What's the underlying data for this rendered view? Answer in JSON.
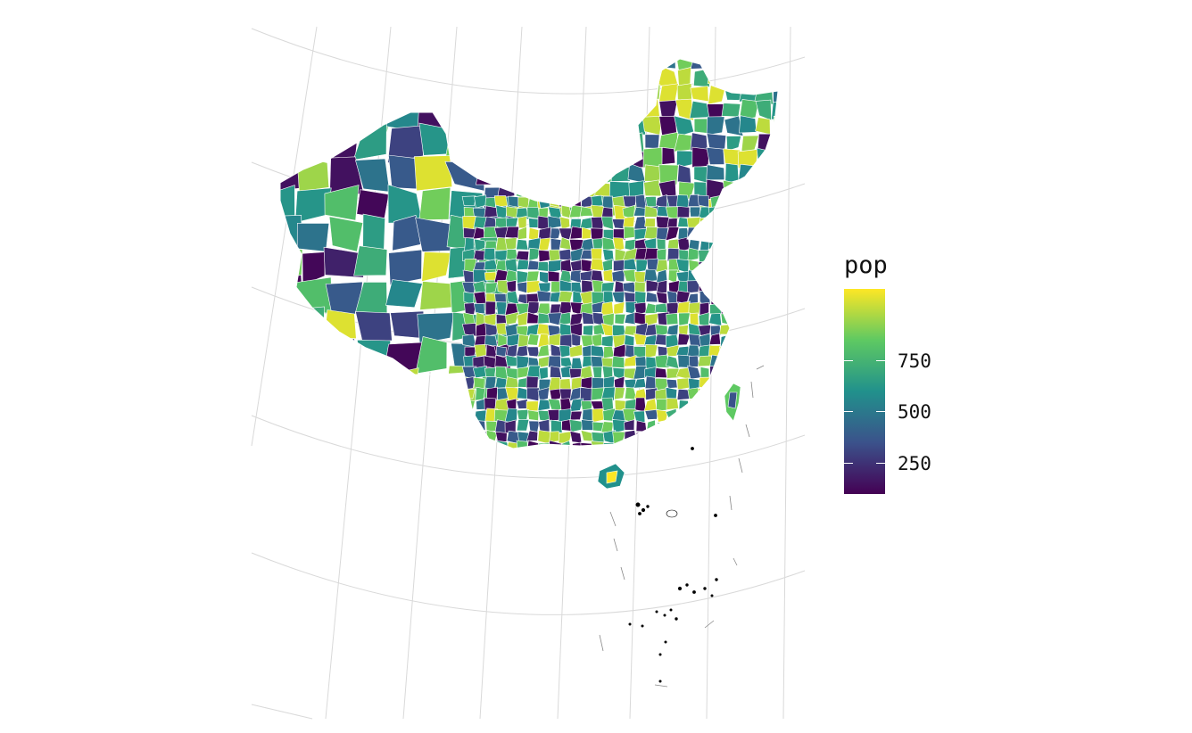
{
  "chart_data": {
    "type": "choropleth",
    "legend": {
      "title": "pop",
      "ticks": [
        250,
        500,
        750
      ],
      "range": [
        100,
        1100
      ],
      "colors": [
        "#440154",
        "#3b528b",
        "#21918c",
        "#5ec962",
        "#fde725"
      ]
    },
    "region_fill_values": [
      120,
      300,
      480,
      650,
      800,
      950,
      1050,
      200,
      560,
      720,
      880,
      380,
      1000,
      150,
      620
    ],
    "border_color": "#ffffff",
    "graticule_color": "#d9d9d9",
    "island_color": "#000000"
  }
}
